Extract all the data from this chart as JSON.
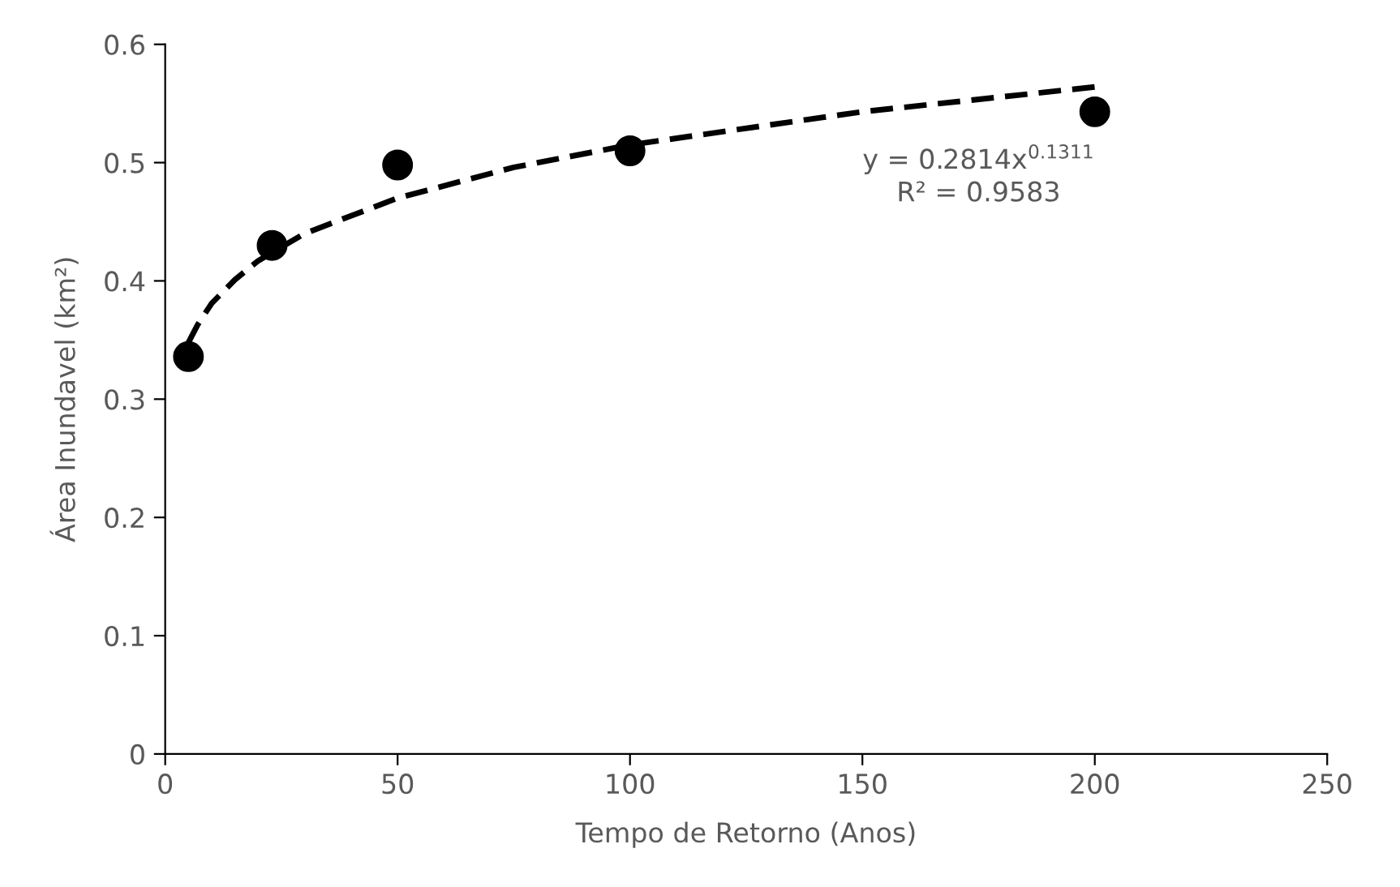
{
  "chart_data": {
    "type": "scatter",
    "xlabel": "Tempo de Retorno (Anos)",
    "ylabel": "Área Inundavel (km²)",
    "x": [
      5,
      23,
      50,
      100,
      200
    ],
    "series": [
      {
        "color": "#000000",
        "marker": "circle",
        "values": [
          0.336,
          0.43,
          0.498,
          0.51,
          0.543
        ]
      },
      {
        "type": "line",
        "color": "#000000",
        "line_style": "dashed",
        "marker": "none",
        "x": [
          5,
          7,
          10,
          15,
          20,
          30,
          50,
          75,
          100,
          150,
          200
        ],
        "values": [
          0.348,
          0.363,
          0.381,
          0.401,
          0.417,
          0.44,
          0.47,
          0.496,
          0.515,
          0.543,
          0.564
        ]
      }
    ],
    "annotations": [
      "y = 0.2814x$^{0.1311}$\nR² = 0.9583"
    ],
    "xlim": [
      0,
      250
    ],
    "xticks": [
      0,
      50,
      100,
      150,
      200,
      250
    ],
    "ylim": [
      0,
      0.6
    ],
    "yticks": [
      0,
      0.1,
      0.2,
      0.3,
      0.4,
      0.5,
      0.6
    ],
    "grid": false,
    "legend": false
  }
}
